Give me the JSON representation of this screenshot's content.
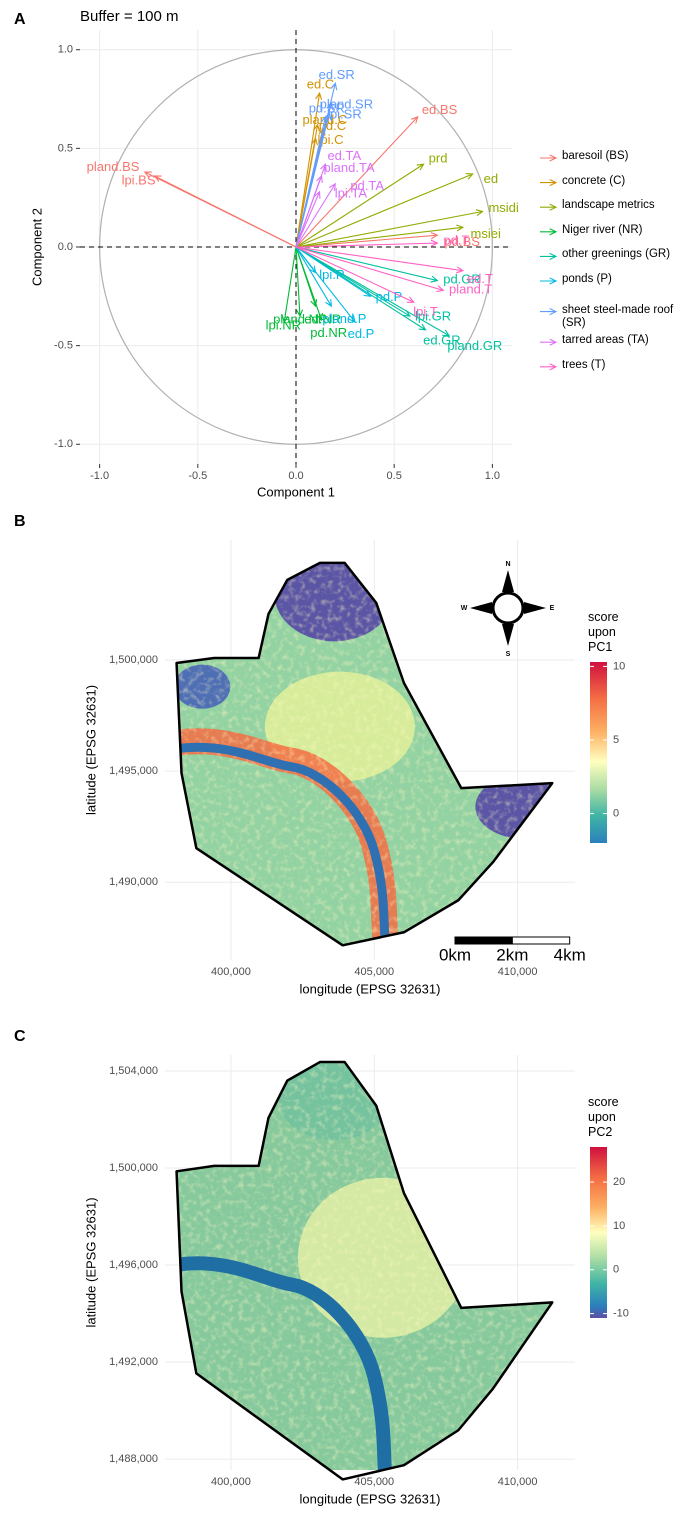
{
  "chart_data": [
    {
      "type": "biplot",
      "panel": "A",
      "title": "Buffer = 100 m",
      "xlabel": "Component 1",
      "ylabel": "Component 2",
      "xlim": [
        -1.1,
        1.1
      ],
      "ylim": [
        -1.1,
        1.1
      ],
      "xticks": [
        {
          "value": -1,
          "label": "-1.0"
        },
        -0.5,
        {
          "value": 0,
          "label": "0.0"
        },
        0.5,
        {
          "value": 1,
          "label": "1.0"
        }
      ],
      "yticks": [
        {
          "value": -1,
          "label": "-1.0"
        },
        -0.5,
        {
          "value": 0,
          "label": "0.0"
        },
        0.5,
        {
          "value": 1,
          "label": "1.0"
        }
      ],
      "grid": true,
      "series": [
        {
          "name": "baresoil (BS)",
          "color": "#F8766D",
          "labels": [
            "pland.BS",
            "lpi.BS",
            "ed.BS",
            "pd.BS"
          ],
          "x": [
            -0.77,
            -0.72,
            0.62,
            0.72
          ],
          "y": [
            0.38,
            0.36,
            0.66,
            0.06
          ]
        },
        {
          "name": "concrete (C)",
          "color": "#D39200",
          "labels": [
            "ed.C",
            "pd.C",
            "pland.C",
            "lpi.C"
          ],
          "x": [
            0.12,
            0.11,
            0.14,
            0.1
          ],
          "y": [
            0.78,
            0.62,
            0.6,
            0.55
          ]
        },
        {
          "name": "landscape metrics",
          "color": "#93AA00",
          "labels": [
            "prd",
            "ed",
            "msidi",
            "msiei"
          ],
          "x": [
            0.65,
            0.9,
            0.95,
            0.85
          ],
          "y": [
            0.42,
            0.37,
            0.18,
            0.1
          ]
        },
        {
          "name": "Niger river (NR)",
          "color": "#00BA38",
          "labels": [
            "lpi.NR",
            "ed.NR",
            "pland.NR",
            "pd.NR"
          ],
          "x": [
            -0.06,
            0.1,
            0.02,
            0.13
          ],
          "y": [
            -0.38,
            -0.3,
            -0.35,
            -0.37
          ]
        },
        {
          "name": "other greenings (GR)",
          "color": "#00C19F",
          "labels": [
            "pd.GR",
            "ed.GR",
            "lpi.GR",
            "pland.GR"
          ],
          "x": [
            0.72,
            0.66,
            0.58,
            0.78
          ],
          "y": [
            -0.17,
            -0.42,
            -0.35,
            -0.45
          ]
        },
        {
          "name": "ponds (P)",
          "color": "#00B9E3",
          "labels": [
            "lpi.P",
            "pland.P",
            "pd.P",
            "ed.P"
          ],
          "x": [
            0.1,
            0.18,
            0.38,
            0.3
          ],
          "y": [
            -0.13,
            -0.3,
            -0.25,
            -0.38
          ]
        },
        {
          "name": "sheet steel-made roof (SR)",
          "color": "#619CFF",
          "labels": [
            "ed.SR",
            "pland.SR",
            "pd.SR",
            "lpi.SR"
          ],
          "x": [
            0.2,
            0.18,
            0.15,
            0.17
          ],
          "y": [
            0.83,
            0.73,
            0.66,
            0.68
          ]
        },
        {
          "name": "tarred areas (TA)",
          "color": "#DB72FB",
          "labels": [
            "ed.TA",
            "pd.TA",
            "pland.TA",
            "lpi.TA"
          ],
          "x": [
            0.15,
            0.2,
            0.13,
            0.12
          ],
          "y": [
            0.42,
            0.32,
            0.36,
            0.28
          ]
        },
        {
          "name": "trees (T)",
          "color": "#FF61C3",
          "labels": [
            "pd.T",
            "ed.T",
            "pland.T",
            "lpi.T"
          ],
          "x": [
            0.72,
            0.85,
            0.75,
            0.6
          ],
          "y": [
            0.02,
            -0.12,
            -0.22,
            -0.28
          ]
        }
      ]
    },
    {
      "type": "map",
      "panel": "B",
      "xlabel": "longitude (EPSG 32631)",
      "ylabel": "latitude (EPSG 32631)",
      "xlim": [
        397700,
        412000
      ],
      "ylim": [
        1486500,
        1505400
      ],
      "xticks": [
        {
          "value": 400000,
          "label": "400,000"
        },
        {
          "value": 405000,
          "label": "405,000"
        },
        {
          "value": 410000,
          "label": "410,000"
        }
      ],
      "yticks": [
        {
          "value": 1490000,
          "label": "1,490,000"
        },
        {
          "value": 1495000,
          "label": "1,495,000"
        },
        {
          "value": 1500000,
          "label": "1,500,000"
        }
      ],
      "grid": true,
      "boundary": {
        "x": [
          398103,
          399414,
          400966,
          401310,
          401966,
          403103,
          403966,
          405069,
          406034,
          408034,
          411207,
          409138,
          407931,
          406034,
          403897,
          398793,
          398276
        ],
        "y": [
          1499865,
          1500090,
          1500090,
          1502072,
          1503604,
          1504369,
          1504369,
          1502568,
          1498964,
          1494234,
          1494459,
          1490901,
          1489189,
          1487748,
          1487162,
          1491532,
          1494910
        ]
      },
      "colorbar": {
        "title": "score upon PC1",
        "lim": [
          -2,
          10.3
        ],
        "ticks": [
          10,
          5,
          0
        ]
      },
      "scalebar": {
        "breaks": [
          0,
          2000,
          4000
        ],
        "labels": [
          "0km",
          "2km",
          "4km"
        ]
      },
      "compass": {
        "north": "N",
        "east": "E",
        "south": "S",
        "west": "W"
      }
    },
    {
      "type": "map",
      "panel": "C",
      "xlabel": "longitude (EPSG 32631)",
      "ylabel": "latitude (EPSG 32631)",
      "xlim": [
        397700,
        412000
      ],
      "ylim": [
        1487550,
        1504660
      ],
      "xticks": [
        {
          "value": 400000,
          "label": "400,000"
        },
        {
          "value": 405000,
          "label": "405,000"
        },
        {
          "value": 410000,
          "label": "410,000"
        }
      ],
      "yticks": [
        {
          "value": 1488000,
          "label": "1,488,000"
        },
        {
          "value": 1492000,
          "label": "1,492,000"
        },
        {
          "value": 1496000,
          "label": "1,496,000"
        },
        {
          "value": 1500000,
          "label": "1,500,000"
        },
        {
          "value": 1504000,
          "label": "1,504,000"
        }
      ],
      "grid": true,
      "boundary": {
        "x": [
          398103,
          399414,
          400966,
          401310,
          401966,
          403103,
          403966,
          405069,
          406034,
          408034,
          411207,
          409138,
          407931,
          406034,
          403897,
          398793,
          398276
        ],
        "y": [
          1499865,
          1500090,
          1500090,
          1502072,
          1503604,
          1504369,
          1504369,
          1502568,
          1498964,
          1494234,
          1494459,
          1490901,
          1489189,
          1487748,
          1487162,
          1491532,
          1494910
        ]
      },
      "colorbar": {
        "title": "score upon PC2",
        "lim": [
          -11,
          28
        ],
        "ticks": [
          20,
          10,
          0,
          -10
        ]
      }
    }
  ]
}
